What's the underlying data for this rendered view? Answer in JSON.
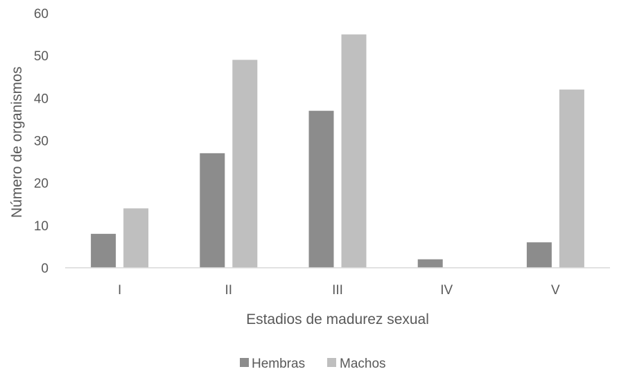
{
  "chart_data": {
    "type": "bar",
    "title": "",
    "xlabel": "Estadios de madurez sexual",
    "ylabel": "Número de organismos",
    "categories": [
      "I",
      "II",
      "III",
      "IV",
      "V"
    ],
    "series": [
      {
        "name": "Hembras",
        "color": "#8c8c8c",
        "values": [
          8,
          27,
          37,
          2,
          6
        ]
      },
      {
        "name": "Machos",
        "color": "#bfbfbf",
        "values": [
          14,
          49,
          55,
          0,
          42
        ]
      }
    ],
    "ylim": [
      0,
      60
    ],
    "yticks": [
      0,
      10,
      20,
      30,
      40,
      50,
      60
    ],
    "grid": false,
    "legend_position": "bottom-center"
  }
}
